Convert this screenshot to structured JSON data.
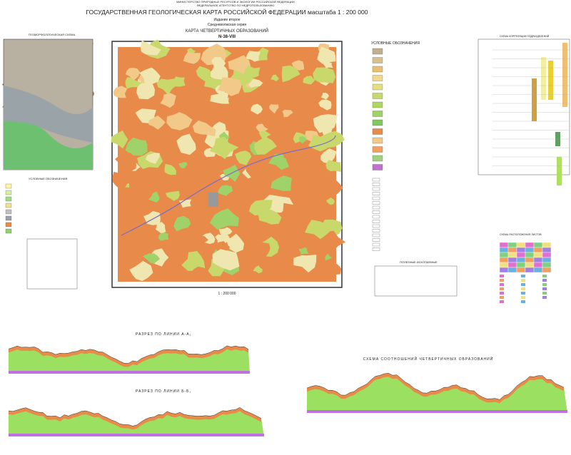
{
  "header": {
    "ministry": "МИНИСТЕРСТВО ПРИРОДНЫХ РЕСУРСОВ И ЭКОЛОГИИ РОССИЙСКОЙ ФЕДЕРАЦИИ",
    "agency": "ФЕДЕРАЛЬНОЕ АГЕНТСТВО ПО НЕДРОПОЛЬЗОВАНИЮ",
    "title": "ГОСУДАРСТВЕННАЯ ГЕОЛОГИЧЕСКАЯ КАРТА РОССИЙСКОЙ ФЕДЕРАЦИИ масштаба 1 : 200 000",
    "edition": "Издание второе",
    "series": "Средневолжская серия",
    "map_title": "КАРТА ЧЕТВЕРТИЧНЫХ ОБРАЗОВАНИЙ",
    "sheet": "N-38-VIII"
  },
  "left": {
    "geomorph_title": "ГЕОМОРФОЛОГИЧЕСКАЯ СХЕМА",
    "legend_title": "УСЛОВНЫЕ ОБОЗНАЧЕНИЯ"
  },
  "right": {
    "legend_title": "УСЛОВНЫЕ ОБОЗНАЧЕНИЯ",
    "minerals_title": "ПОЛЕЗНЫЕ ИСКОПАЕМЫЕ",
    "correlation_title": "СХЕМА КОРРЕЛЯЦИИ ПОДРАЗДЕЛЕНИЙ",
    "layout_title": "СХЕМА РАСПОЛОЖЕНИЯ ЛИСТОВ"
  },
  "map": {
    "scale": "1 : 200 000"
  },
  "sections": {
    "a_title": "РАЗРЕЗ ПО ЛИНИИ А-А₁",
    "b_title": "РАЗРЕЗ ПО ЛИНИИ Б-Б₁",
    "scheme_title": "СХЕМА СООТНОШЕНИЙ ЧЕТВЕРТИЧНЫХ ОБРАЗОВАНИЙ"
  }
}
